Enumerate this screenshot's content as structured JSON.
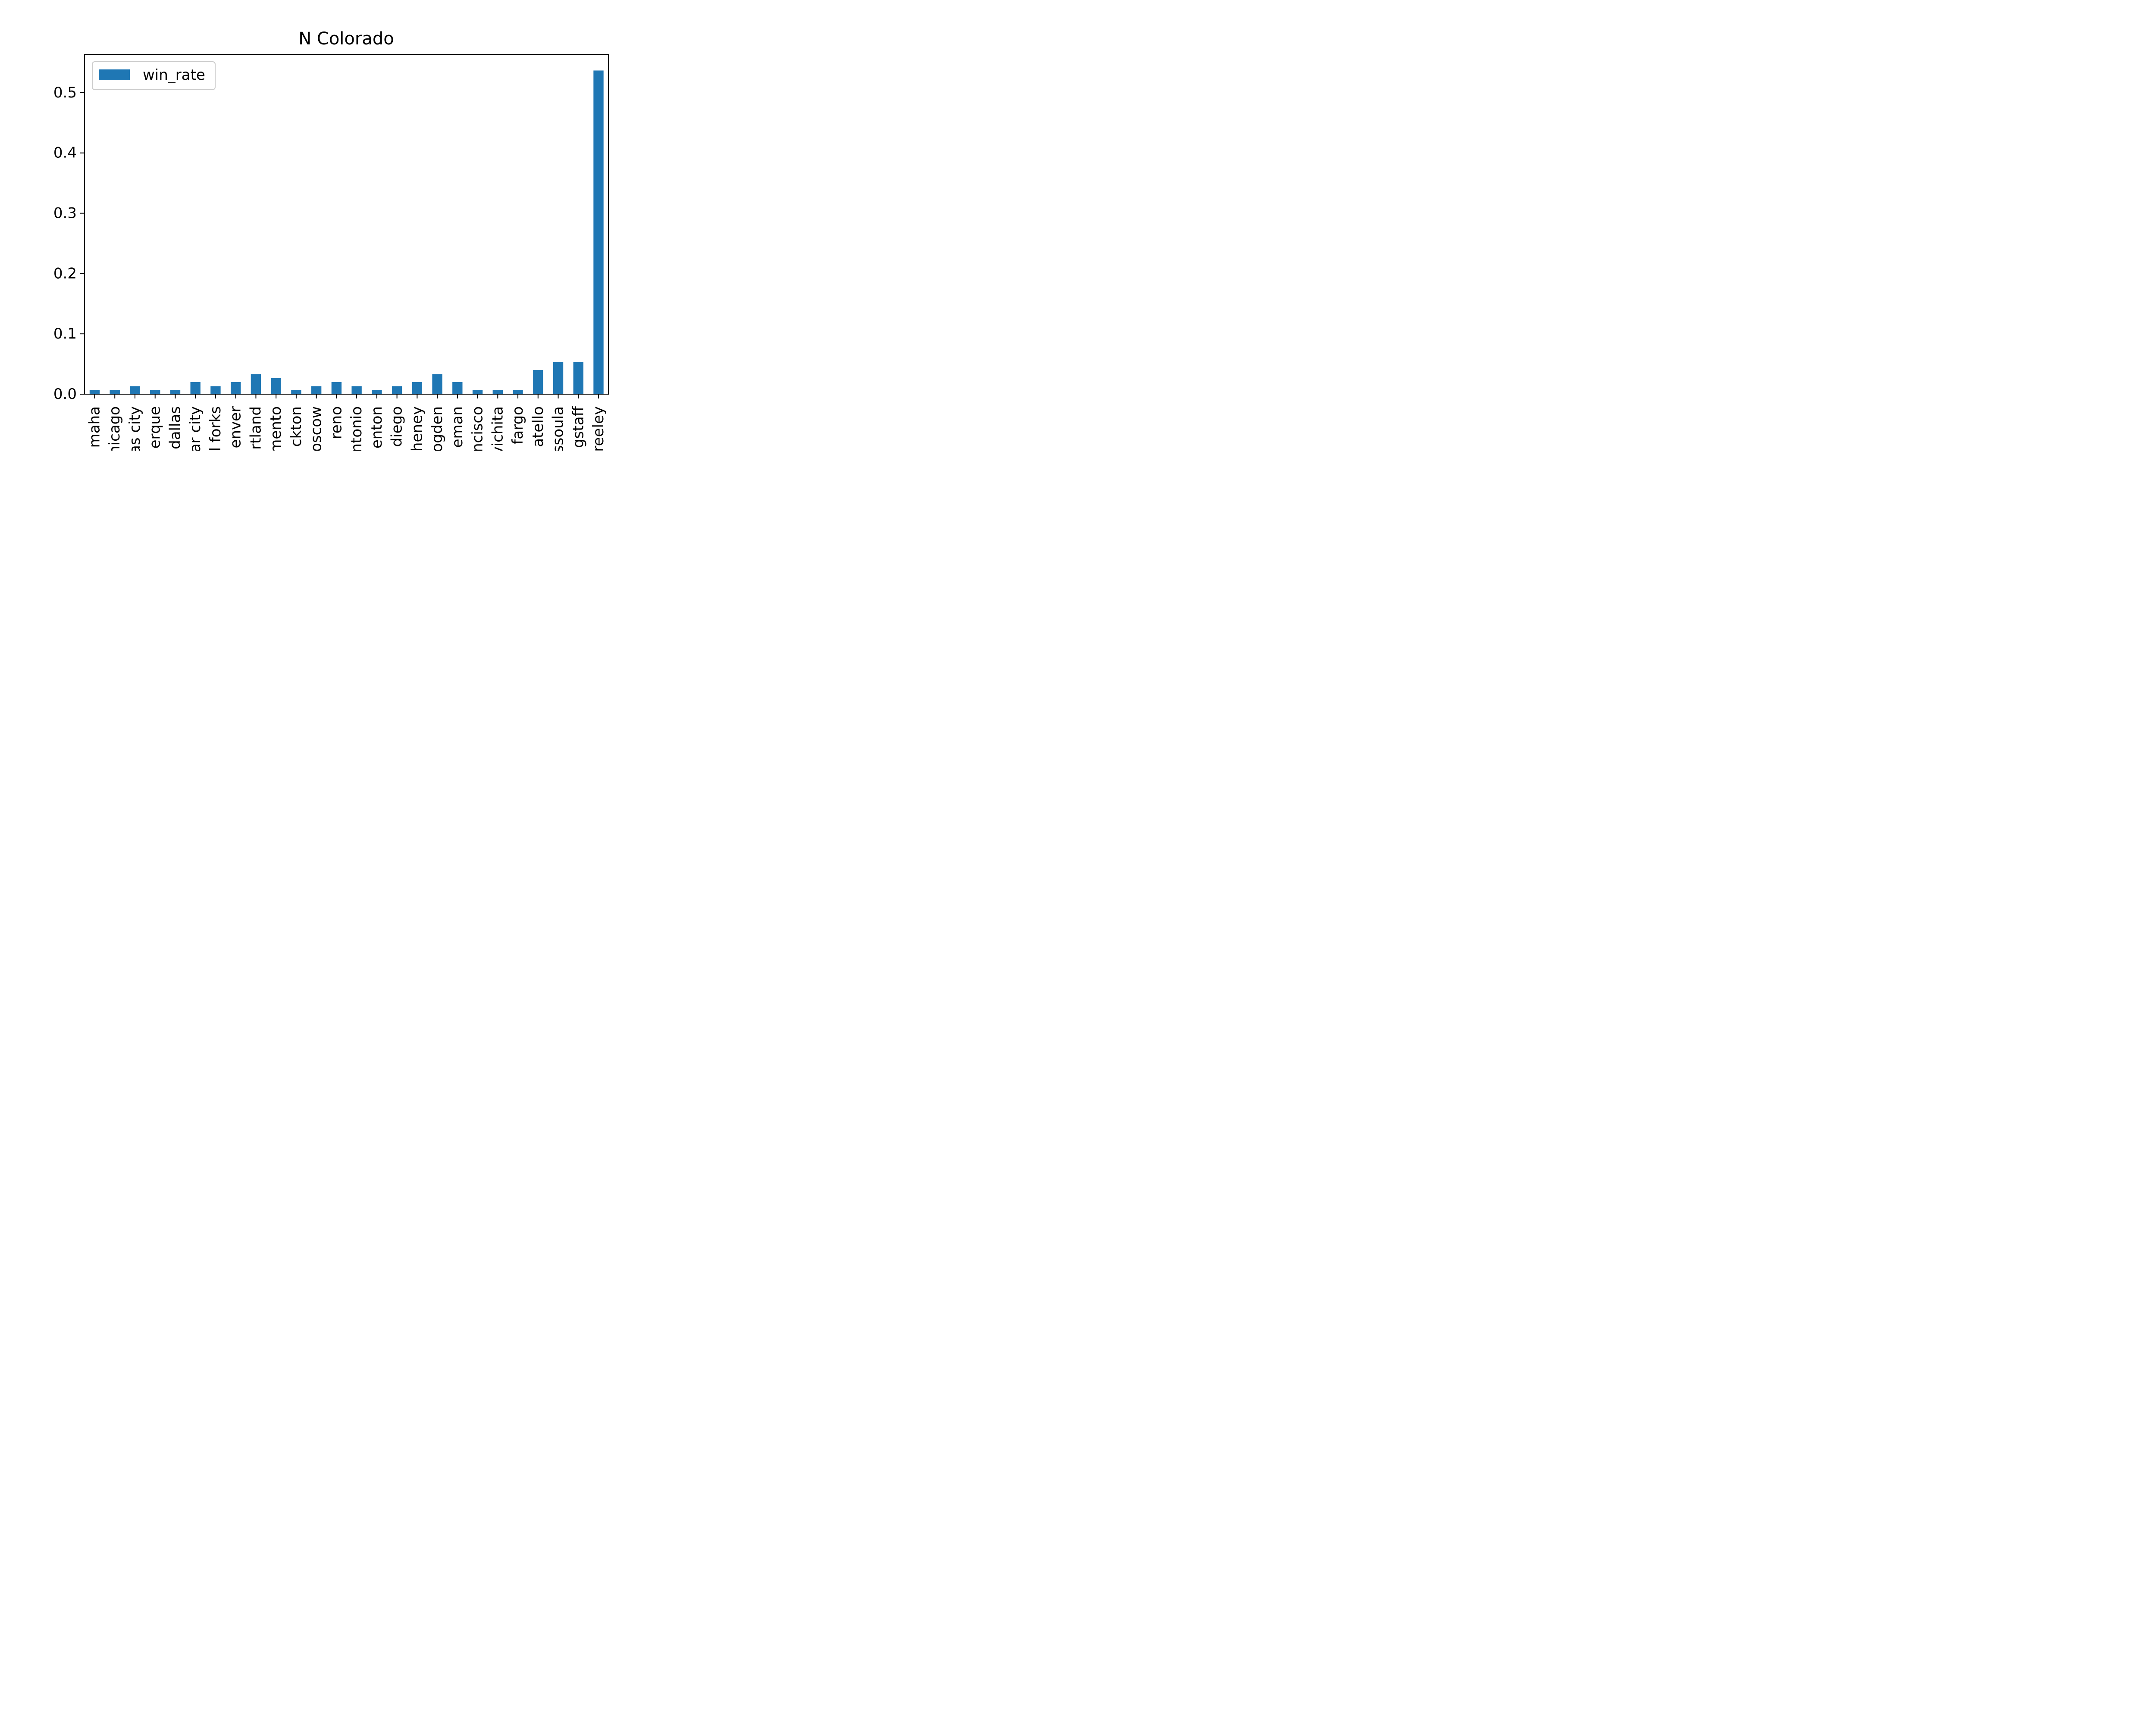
{
  "chart_data": {
    "type": "bar",
    "title": "N Colorado",
    "xlabel": "",
    "ylabel": "",
    "categories": [
      "omaha",
      "chicago",
      "kansas city",
      "albuquerque",
      "dallas",
      "cedar city",
      "grand forks",
      "denver",
      "portland",
      "sacramento",
      "stockton",
      "moscow",
      "reno",
      "san antonio",
      "trenton",
      "san diego",
      "cheney",
      "ogden",
      "bozeman",
      "san francisco",
      "wichita",
      "fargo",
      "pocatello",
      "missoula",
      "flagstaff",
      "greeley"
    ],
    "tick_labels_visible": [
      "maha",
      "nicago",
      "as city",
      "erque",
      "dallas",
      "ar city",
      "l forks",
      "enver",
      "rtland",
      "mento",
      "ckton",
      "oscow",
      "reno",
      "ntonio",
      "enton",
      "diego",
      "heney",
      "ogden",
      "eman",
      "ncisco",
      "vichita",
      "fargo",
      "atello",
      "ssoula",
      "gstaff",
      "reeley"
    ],
    "series": [
      {
        "name": "win_rate",
        "color": "#1f77b4",
        "values": [
          0.0067,
          0.0067,
          0.0133,
          0.0067,
          0.0067,
          0.02,
          0.0133,
          0.02,
          0.0333,
          0.0267,
          0.0067,
          0.0133,
          0.02,
          0.0133,
          0.0067,
          0.0133,
          0.02,
          0.0333,
          0.02,
          0.0067,
          0.0067,
          0.0067,
          0.04,
          0.0533,
          0.0533,
          0.5367
        ]
      }
    ],
    "ylim": [
      0,
      0.5635
    ],
    "yticks": [
      0.0,
      0.1,
      0.2,
      0.3,
      0.4,
      0.5
    ],
    "ytick_labels": [
      "0.0",
      "0.1",
      "0.2",
      "0.3",
      "0.4",
      "0.5"
    ],
    "legend": {
      "placement": "top-left",
      "label": "win_rate"
    },
    "grid": false
  }
}
